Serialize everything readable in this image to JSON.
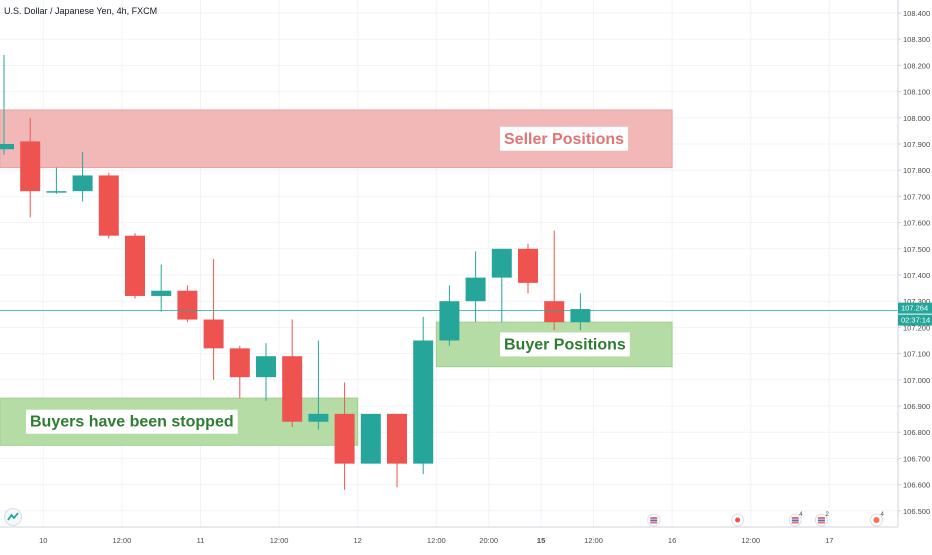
{
  "symbol_title": "U.S. Dollar / Japanese Yen, 4h, FXCM",
  "colors": {
    "up": "#26a69a",
    "down": "#ef5350",
    "grid": "#f0f3fa",
    "axis_text": "#4a4a4a",
    "seller_zone": "#f2b8b8",
    "buyer_zone": "#b6dca6",
    "seller_text": "#e57373",
    "buyer_text": "#2e7d32",
    "price_line": "#26a69a"
  },
  "chart_data": {
    "type": "candlestick",
    "title": "U.S. Dollar / Japanese Yen, 4h, FXCM",
    "ylim": [
      106.45,
      108.45
    ],
    "y_ticks": [
      "106.500",
      "106.600",
      "106.700",
      "106.800",
      "106.900",
      "107.000",
      "107.100",
      "107.200",
      "107.300",
      "107.400",
      "107.500",
      "107.600",
      "107.700",
      "107.800",
      "107.900",
      "108.000",
      "108.100",
      "108.200",
      "108.300",
      "108.400"
    ],
    "x_ticks": [
      {
        "slot": 1.5,
        "label": "10"
      },
      {
        "slot": 4.5,
        "label": "12:00"
      },
      {
        "slot": 7.5,
        "label": "11"
      },
      {
        "slot": 10.5,
        "label": "12:00"
      },
      {
        "slot": 13.5,
        "label": "12"
      },
      {
        "slot": 16.5,
        "label": "12:00"
      },
      {
        "slot": 18.5,
        "label": "20:00"
      },
      {
        "slot": 20.5,
        "label": "15"
      },
      {
        "slot": 22.5,
        "label": "12:00"
      },
      {
        "slot": 25.5,
        "label": "16"
      },
      {
        "slot": 28.5,
        "label": "12:00"
      },
      {
        "slot": 31.5,
        "label": "17"
      }
    ],
    "candles": [
      {
        "o": 107.88,
        "h": 108.24,
        "l": 107.86,
        "c": 107.9
      },
      {
        "o": 107.91,
        "h": 108.0,
        "l": 107.62,
        "c": 107.72
      },
      {
        "o": 107.72,
        "h": 107.81,
        "l": 107.71,
        "c": 107.72
      },
      {
        "o": 107.72,
        "h": 107.87,
        "l": 107.68,
        "c": 107.78
      },
      {
        "o": 107.78,
        "h": 107.79,
        "l": 107.54,
        "c": 107.55
      },
      {
        "o": 107.55,
        "h": 107.56,
        "l": 107.31,
        "c": 107.32
      },
      {
        "o": 107.32,
        "h": 107.44,
        "l": 107.26,
        "c": 107.34
      },
      {
        "o": 107.34,
        "h": 107.36,
        "l": 107.22,
        "c": 107.23
      },
      {
        "o": 107.23,
        "h": 107.46,
        "l": 107.0,
        "c": 107.12
      },
      {
        "o": 107.12,
        "h": 107.13,
        "l": 106.93,
        "c": 107.01
      },
      {
        "o": 107.01,
        "h": 107.14,
        "l": 106.92,
        "c": 107.09
      },
      {
        "o": 107.09,
        "h": 107.23,
        "l": 106.82,
        "c": 106.84
      },
      {
        "o": 106.84,
        "h": 107.15,
        "l": 106.81,
        "c": 106.87
      },
      {
        "o": 106.87,
        "h": 106.99,
        "l": 106.58,
        "c": 106.68
      },
      {
        "o": 106.68,
        "h": 106.87,
        "l": 106.68,
        "c": 106.87
      },
      {
        "o": 106.87,
        "h": 106.87,
        "l": 106.59,
        "c": 106.68
      },
      {
        "o": 106.68,
        "h": 107.24,
        "l": 106.64,
        "c": 107.15
      },
      {
        "o": 107.15,
        "h": 107.36,
        "l": 107.13,
        "c": 107.3
      },
      {
        "o": 107.3,
        "h": 107.49,
        "l": 107.22,
        "c": 107.39
      },
      {
        "o": 107.39,
        "h": 107.5,
        "l": 107.22,
        "c": 107.5
      },
      {
        "o": 107.5,
        "h": 107.52,
        "l": 107.33,
        "c": 107.37
      },
      {
        "o": 107.3,
        "h": 107.57,
        "l": 107.19,
        "c": 107.22
      },
      {
        "o": 107.22,
        "h": 107.33,
        "l": 107.19,
        "c": 107.27
      }
    ],
    "current_price": 107.264,
    "countdown": "02:37:14",
    "zones": [
      {
        "name": "Seller Positions",
        "kind": "seller",
        "slot_start": -0.5,
        "slot_end": 25.5,
        "y_top": 108.03,
        "y_bottom": 107.81
      },
      {
        "name": "Buyer Positions",
        "kind": "buyer",
        "slot_start": 16.5,
        "slot_end": 25.5,
        "y_top": 107.22,
        "y_bottom": 107.05
      },
      {
        "name": "Buyers have been stopped",
        "kind": "buyer",
        "slot_start": -0.5,
        "slot_end": 13.5,
        "y_top": 106.93,
        "y_bottom": 106.75
      }
    ],
    "event_markers": [
      {
        "slot": 24.8,
        "type": "flag",
        "badge": ""
      },
      {
        "slot": 28.0,
        "type": "dot",
        "badge": ""
      },
      {
        "slot": 30.2,
        "type": "flag",
        "badge": "4"
      },
      {
        "slot": 31.2,
        "type": "flag",
        "badge": "2"
      },
      {
        "slot": 33.3,
        "type": "fire",
        "badge": "4"
      }
    ]
  }
}
